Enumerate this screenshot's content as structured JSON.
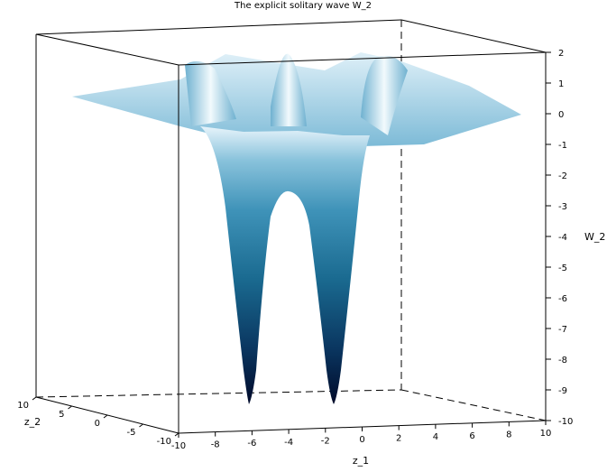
{
  "chart_data": {
    "type": "surface3d",
    "title": "The explicit solitary wave W_2",
    "xlabel": "z_1",
    "ylabel": "z_2",
    "zlabel": "W_2",
    "x_ticks": [
      -10,
      -8,
      -6,
      -4,
      -2,
      0,
      2,
      4,
      6,
      8,
      10
    ],
    "y_ticks": [
      -10,
      -5,
      0,
      5,
      10
    ],
    "y_tick_labels": [
      "-10",
      "-5",
      "0",
      "5",
      "10"
    ],
    "z_ticks": [
      2,
      1,
      0,
      -1,
      -2,
      -3,
      -4,
      -5,
      -6,
      -7,
      -8,
      -9,
      -10
    ],
    "xlim": [
      -10,
      10
    ],
    "ylim": [
      -10,
      10
    ],
    "zlim": [
      -10,
      2
    ],
    "features": [
      {
        "kind": "trough",
        "z1": -6.3,
        "z2": -5,
        "min": -9.3
      },
      {
        "kind": "trough",
        "z1": -1.7,
        "z2": -5,
        "min": -9.3
      },
      {
        "kind": "ridge",
        "z1": -4,
        "max": 1.8
      },
      {
        "kind": "ridge",
        "z1": 0.5,
        "max": 1.8
      },
      {
        "kind": "ridge",
        "z1": -8.5,
        "max": 1.8
      }
    ],
    "colormap": [
      "#000a2a",
      "#0a3660",
      "#1a6a90",
      "#3f93b9",
      "#8ac3dc",
      "#e7f4fb"
    ],
    "grid": false
  }
}
